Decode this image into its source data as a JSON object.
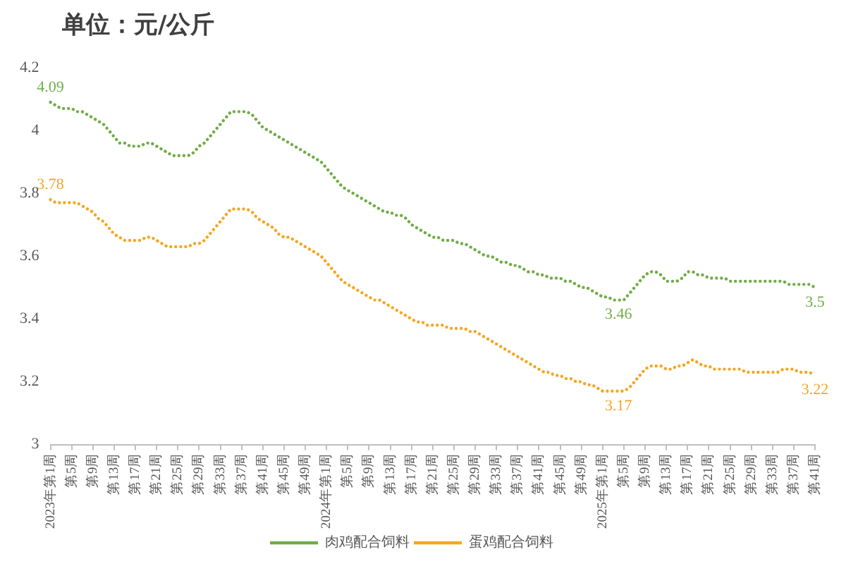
{
  "chart_data": {
    "type": "line",
    "title": "单位：元/公斤",
    "categories": [
      "2023年第1周",
      null,
      null,
      null,
      "第5周",
      null,
      null,
      null,
      "第9周",
      null,
      null,
      null,
      "第13周",
      null,
      null,
      null,
      "第17周",
      null,
      null,
      null,
      "第21周",
      null,
      null,
      null,
      "第25周",
      null,
      null,
      null,
      "第29周",
      null,
      null,
      null,
      "第33周",
      null,
      null,
      null,
      "第37周",
      null,
      null,
      null,
      "第41周",
      null,
      null,
      null,
      "第45周",
      null,
      null,
      null,
      "第49周",
      null,
      null,
      null,
      "2024年第1周",
      null,
      null,
      null,
      "第5周",
      null,
      null,
      null,
      "第9周",
      null,
      null,
      null,
      "第13周",
      null,
      null,
      null,
      "第17周",
      null,
      null,
      null,
      "第21周",
      null,
      null,
      null,
      "第25周",
      null,
      null,
      null,
      "第29周",
      null,
      null,
      null,
      "第33周",
      null,
      null,
      null,
      "第37周",
      null,
      null,
      null,
      "第41周",
      null,
      null,
      null,
      "第45周",
      null,
      null,
      null,
      "第49周",
      null,
      null,
      null,
      "2025年第1周",
      null,
      null,
      null,
      "第5周",
      null,
      null,
      null,
      "第9周",
      null,
      null,
      null,
      "第13周",
      null,
      null,
      null,
      "第17周",
      null,
      null,
      null,
      "第21周",
      null,
      null,
      null,
      "第25周",
      null,
      null,
      null,
      "第29周",
      null,
      null,
      null,
      "第33周",
      null,
      null,
      null,
      "第37周",
      null,
      null,
      null,
      "第41周"
    ],
    "series": [
      {
        "name": "肉鸡配合饲料",
        "color": "#70ad47",
        "values": [
          4.09,
          4.08,
          4.07,
          4.07,
          4.07,
          4.06,
          4.06,
          4.05,
          4.04,
          4.03,
          4.02,
          4,
          3.98,
          3.96,
          3.96,
          3.95,
          3.95,
          3.95,
          3.96,
          3.96,
          3.95,
          3.94,
          3.93,
          3.92,
          3.92,
          3.92,
          3.92,
          3.93,
          3.95,
          3.96,
          3.98,
          4,
          4.02,
          4.04,
          4.06,
          4.06,
          4.06,
          4.06,
          4.05,
          4.03,
          4.01,
          4,
          3.99,
          3.98,
          3.97,
          3.96,
          3.95,
          3.94,
          3.93,
          3.92,
          3.91,
          3.9,
          3.88,
          3.86,
          3.84,
          3.82,
          3.81,
          3.8,
          3.79,
          3.78,
          3.77,
          3.76,
          3.75,
          3.74,
          3.74,
          3.73,
          3.73,
          3.72,
          3.7,
          3.69,
          3.68,
          3.67,
          3.66,
          3.66,
          3.65,
          3.65,
          3.65,
          3.64,
          3.64,
          3.63,
          3.62,
          3.61,
          3.6,
          3.6,
          3.59,
          3.58,
          3.58,
          3.57,
          3.57,
          3.56,
          3.55,
          3.55,
          3.54,
          3.54,
          3.53,
          3.53,
          3.53,
          3.52,
          3.52,
          3.51,
          3.5,
          3.5,
          3.49,
          3.48,
          3.47,
          3.47,
          3.46,
          3.46,
          3.46,
          3.48,
          3.5,
          3.52,
          3.54,
          3.55,
          3.55,
          3.54,
          3.52,
          3.52,
          3.52,
          3.53,
          3.55,
          3.55,
          3.54,
          3.54,
          3.53,
          3.53,
          3.53,
          3.53,
          3.52,
          3.52,
          3.52,
          3.52,
          3.52,
          3.52,
          3.52,
          3.52,
          3.52,
          3.52,
          3.52,
          3.51,
          3.51,
          3.51,
          3.51,
          3.51,
          3.5
        ],
        "value_labels": [
          "4.09",
          null,
          null,
          null,
          null,
          null,
          null,
          null,
          null,
          null,
          null,
          null,
          null,
          null,
          null,
          null,
          null,
          null,
          null,
          null,
          null,
          null,
          null,
          null,
          null,
          null,
          null,
          null,
          null,
          null,
          null,
          null,
          null,
          null,
          null,
          null,
          null,
          null,
          null,
          null,
          null,
          null,
          null,
          null,
          null,
          null,
          null,
          null,
          null,
          null,
          null,
          null,
          null,
          null,
          null,
          null,
          null,
          null,
          null,
          null,
          null,
          null,
          null,
          null,
          null,
          null,
          null,
          null,
          null,
          null,
          null,
          null,
          null,
          null,
          null,
          null,
          null,
          null,
          null,
          null,
          null,
          null,
          null,
          null,
          null,
          null,
          null,
          null,
          null,
          null,
          null,
          null,
          null,
          null,
          null,
          null,
          null,
          null,
          null,
          null,
          null,
          null,
          null,
          null,
          null,
          null,
          null,
          "3.46",
          null,
          null,
          null,
          null,
          null,
          null,
          null,
          null,
          null,
          null,
          null,
          null,
          null,
          null,
          null,
          null,
          null,
          null,
          null,
          null,
          null,
          null,
          null,
          null,
          null,
          null,
          null,
          null,
          null,
          null,
          null,
          null,
          null,
          null,
          null,
          null,
          "3.5"
        ]
      },
      {
        "name": "蛋鸡配合饲料",
        "color": "#f5a623",
        "values": [
          3.78,
          3.77,
          3.77,
          3.77,
          3.77,
          3.77,
          3.76,
          3.75,
          3.74,
          3.72,
          3.71,
          3.69,
          3.67,
          3.66,
          3.65,
          3.65,
          3.65,
          3.65,
          3.66,
          3.66,
          3.65,
          3.64,
          3.63,
          3.63,
          3.63,
          3.63,
          3.63,
          3.64,
          3.64,
          3.65,
          3.67,
          3.69,
          3.71,
          3.73,
          3.75,
          3.75,
          3.75,
          3.75,
          3.74,
          3.72,
          3.71,
          3.7,
          3.69,
          3.67,
          3.66,
          3.66,
          3.65,
          3.64,
          3.63,
          3.62,
          3.61,
          3.6,
          3.58,
          3.56,
          3.54,
          3.52,
          3.51,
          3.5,
          3.49,
          3.48,
          3.47,
          3.46,
          3.46,
          3.45,
          3.44,
          3.43,
          3.42,
          3.41,
          3.4,
          3.39,
          3.39,
          3.38,
          3.38,
          3.38,
          3.38,
          3.37,
          3.37,
          3.37,
          3.37,
          3.36,
          3.36,
          3.35,
          3.34,
          3.33,
          3.32,
          3.31,
          3.3,
          3.29,
          3.28,
          3.27,
          3.26,
          3.25,
          3.24,
          3.23,
          3.23,
          3.22,
          3.22,
          3.21,
          3.21,
          3.2,
          3.2,
          3.19,
          3.19,
          3.18,
          3.17,
          3.17,
          3.17,
          3.17,
          3.17,
          3.18,
          3.2,
          3.22,
          3.24,
          3.25,
          3.25,
          3.25,
          3.24,
          3.24,
          3.25,
          3.25,
          3.26,
          3.27,
          3.26,
          3.25,
          3.25,
          3.24,
          3.24,
          3.24,
          3.24,
          3.24,
          3.24,
          3.23,
          3.23,
          3.23,
          3.23,
          3.23,
          3.23,
          3.23,
          3.24,
          3.24,
          3.24,
          3.23,
          3.23,
          3.23,
          3.22
        ],
        "value_labels": [
          "3.78",
          null,
          null,
          null,
          null,
          null,
          null,
          null,
          null,
          null,
          null,
          null,
          null,
          null,
          null,
          null,
          null,
          null,
          null,
          null,
          null,
          null,
          null,
          null,
          null,
          null,
          null,
          null,
          null,
          null,
          null,
          null,
          null,
          null,
          null,
          null,
          null,
          null,
          null,
          null,
          null,
          null,
          null,
          null,
          null,
          null,
          null,
          null,
          null,
          null,
          null,
          null,
          null,
          null,
          null,
          null,
          null,
          null,
          null,
          null,
          null,
          null,
          null,
          null,
          null,
          null,
          null,
          null,
          null,
          null,
          null,
          null,
          null,
          null,
          null,
          null,
          null,
          null,
          null,
          null,
          null,
          null,
          null,
          null,
          null,
          null,
          null,
          null,
          null,
          null,
          null,
          null,
          null,
          null,
          null,
          null,
          null,
          null,
          null,
          null,
          null,
          null,
          null,
          null,
          null,
          null,
          null,
          "3.17",
          null,
          null,
          null,
          null,
          null,
          null,
          null,
          null,
          null,
          null,
          null,
          null,
          null,
          null,
          null,
          null,
          null,
          null,
          null,
          null,
          null,
          null,
          null,
          null,
          null,
          null,
          null,
          null,
          null,
          null,
          null,
          null,
          null,
          null,
          null,
          null,
          "3.22"
        ]
      }
    ],
    "ylim": [
      3,
      4.2
    ],
    "yticks": [
      3,
      3.2,
      3.4,
      3.6,
      3.8,
      4,
      4.2
    ],
    "legend": "bottom",
    "marker": "none",
    "line_style": "dotted"
  }
}
